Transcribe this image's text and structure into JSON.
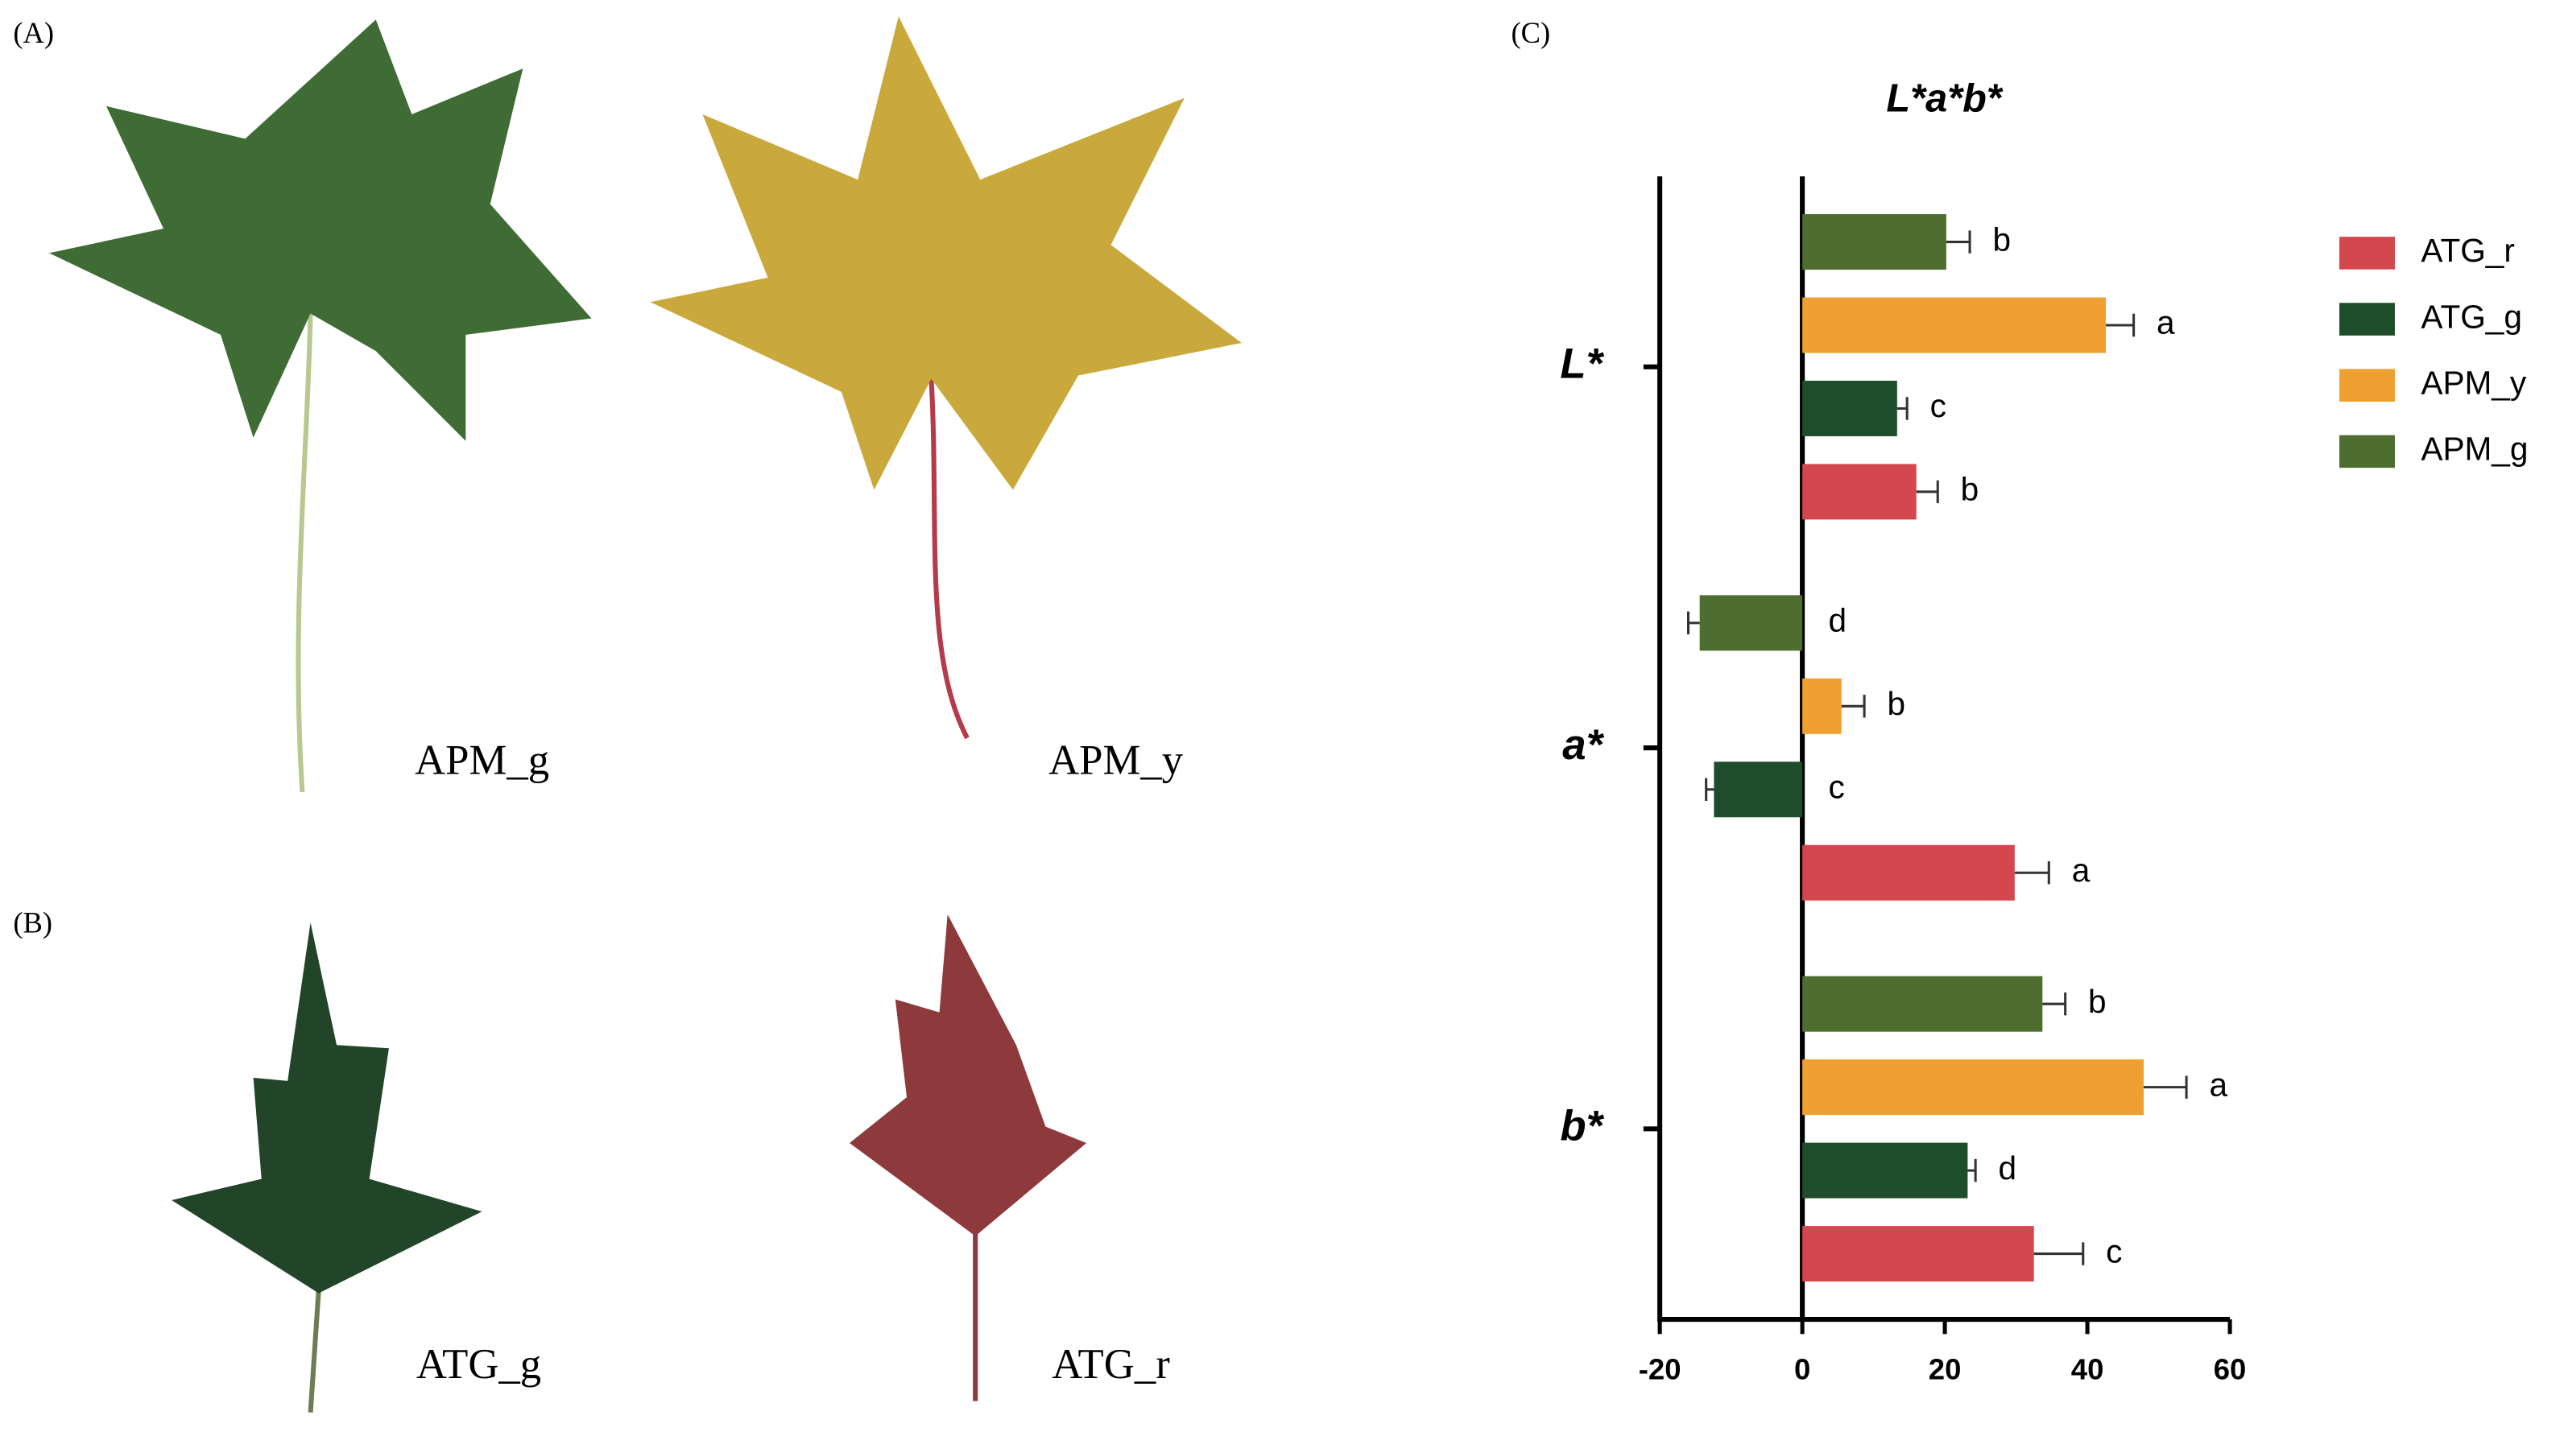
{
  "panels": {
    "a": {
      "label": "(A)",
      "captions": [
        "APM_g",
        "APM_y"
      ]
    },
    "b": {
      "label": "(B)",
      "captions": [
        "ATG_g",
        "ATG_r"
      ]
    },
    "c": {
      "label": "(C)"
    }
  },
  "chart_data": {
    "type": "bar",
    "orientation": "horizontal",
    "title": "L*a*b*",
    "categories": [
      "L*",
      "a*",
      "b*"
    ],
    "series": [
      {
        "name": "ATG_r",
        "color": "#d4474f",
        "values": [
          16.0,
          29.8,
          32.5
        ],
        "errors": [
          3.0,
          4.8,
          6.9
        ],
        "significance": [
          "b",
          "a",
          "c"
        ]
      },
      {
        "name": "ATG_g",
        "color": "#1e4d2b",
        "values": [
          13.3,
          -12.4,
          23.2
        ],
        "errors": [
          1.4,
          1.1,
          1.1
        ],
        "significance": [
          "c",
          "c",
          "d"
        ]
      },
      {
        "name": "APM_y",
        "color": "#f0a030",
        "values": [
          42.6,
          5.5,
          47.9
        ],
        "errors": [
          3.9,
          3.2,
          6.0
        ],
        "significance": [
          "a",
          "b",
          "a"
        ]
      },
      {
        "name": "APM_g",
        "color": "#4e6e30",
        "values": [
          20.2,
          -14.4,
          33.7
        ],
        "errors": [
          3.3,
          1.6,
          3.2
        ],
        "significance": [
          "b",
          "d",
          "b"
        ]
      }
    ],
    "xlim": [
      -20,
      60
    ],
    "xticks": [
      -20,
      0,
      20,
      40,
      60
    ],
    "legend": "right"
  }
}
